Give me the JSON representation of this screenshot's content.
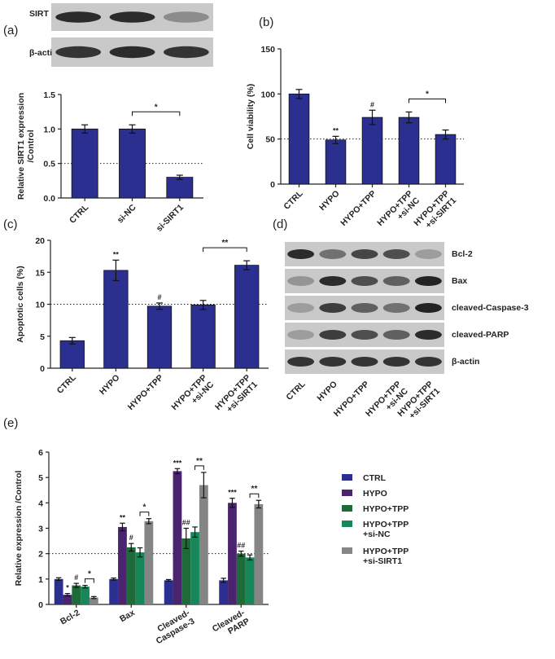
{
  "panel_labels": [
    "(a)",
    "(b)",
    "(c)",
    "(d)",
    "(e)"
  ],
  "blots": {
    "a": {
      "labels": [
        "SIRT",
        "β-acti"
      ]
    },
    "d": {
      "labels": [
        "Bcl-2",
        "Bax",
        "cleaved-Caspase-3",
        "cleaved-PARP",
        "β-actin"
      ],
      "categories": [
        "CTRL",
        "HYPO",
        "HYPO+TPP",
        "HYPO+TPP\n+si-NC",
        "HYPO+TPP\n+si-SIRT1"
      ]
    }
  },
  "chart_data": [
    {
      "type": "bar",
      "ylabel": "Relative SIRT1 expression\n/Control",
      "categories": [
        "CTRL",
        "si-NC",
        "si-SIRT1"
      ],
      "values": [
        1.0,
        1.0,
        0.3
      ],
      "errors": [
        0.06,
        0.06,
        0.03
      ],
      "color": "#2b2f8f",
      "ylim": [
        0,
        1.5
      ],
      "yticks": [
        {
          "value": 0,
          "label": "0.0"
        },
        {
          "value": 0.5,
          "label": "0.5"
        },
        {
          "value": 1.0,
          "label": "1.0"
        },
        {
          "value": 1.5,
          "label": "1.5"
        }
      ],
      "refline": 0.5,
      "brackets": [
        {
          "text": "*",
          "from": 1,
          "to": 2
        }
      ]
    },
    {
      "type": "bar",
      "ylabel": "Cell viability (%)",
      "categories": [
        "CTRL",
        "HYPO",
        "HYPO+TPP",
        "HYPO+TPP\n+si-NC",
        "HYPO+TPP\n+si-SIRT1"
      ],
      "values": [
        100,
        49,
        74,
        74,
        55
      ],
      "errors": [
        5,
        4,
        8,
        6,
        5
      ],
      "color": "#2b2f8f",
      "ylim": [
        0,
        150
      ],
      "yticks": [
        0,
        50,
        100,
        150
      ],
      "refline": 50,
      "annotations": [
        {
          "text": "**",
          "category": 1
        },
        {
          "text": "#",
          "category": 2
        }
      ],
      "brackets": [
        {
          "text": "*",
          "from": 3,
          "to": 4
        }
      ]
    },
    {
      "type": "bar",
      "ylabel": "Apoptotic cells (%)",
      "categories": [
        "CTRL",
        "HYPO",
        "HYPO+TPP",
        "HYPO+TPP\n+si-NC",
        "HYPO+TPP\n+si-SIRT1"
      ],
      "values": [
        4.3,
        15.3,
        9.7,
        9.9,
        16.1
      ],
      "errors": [
        0.5,
        1.6,
        0.5,
        0.7,
        0.7
      ],
      "color": "#2b2f8f",
      "ylim": [
        0,
        20
      ],
      "yticks": [
        0,
        5,
        10,
        15,
        20
      ],
      "refline": 10,
      "annotations": [
        {
          "text": "**",
          "category": 1
        },
        {
          "text": "#",
          "category": 2
        }
      ],
      "brackets": [
        {
          "text": "**",
          "from": 3,
          "to": 4
        }
      ]
    },
    {
      "type": "bar",
      "ylabel": "Relative expression /Control",
      "categories": [
        "Bcl-2",
        "Bax",
        "Cleaved-\nCaspase-3",
        "Cleaved-\nPARP"
      ],
      "series": [
        {
          "name": "CTRL",
          "color": "#2b2f8f",
          "values": [
            1.0,
            1.0,
            0.95,
            0.95
          ],
          "errors": [
            0.05,
            0.04,
            0.03,
            0.08
          ]
        },
        {
          "name": "HYPO",
          "color": "#4b2470",
          "values": [
            0.38,
            3.05,
            5.25,
            4.0
          ],
          "errors": [
            0.05,
            0.15,
            0.1,
            0.18
          ]
        },
        {
          "name": "HYPO+TPP",
          "color": "#1d6b37",
          "values": [
            0.75,
            2.25,
            2.6,
            2.0
          ],
          "errors": [
            0.08,
            0.15,
            0.4,
            0.1
          ]
        },
        {
          "name": "HYPO+TPP\n+si-NC",
          "color": "#17875a",
          "values": [
            0.7,
            2.05,
            2.85,
            1.85
          ],
          "errors": [
            0.05,
            0.18,
            0.2,
            0.1
          ]
        },
        {
          "name": "HYPO+TPP\n+si-SIRT1",
          "color": "#858585",
          "values": [
            0.27,
            3.28,
            4.7,
            3.95
          ],
          "errors": [
            0.04,
            0.1,
            0.5,
            0.15
          ]
        }
      ],
      "ylim": [
        0,
        6
      ],
      "yticks": [
        0,
        1,
        2,
        3,
        4,
        5,
        6
      ],
      "refline": 2,
      "annotations": [
        {
          "text": "*",
          "category": 0,
          "series": 1
        },
        {
          "text": "#",
          "category": 0,
          "series": 2
        },
        {
          "text": "**",
          "category": 1,
          "series": 1
        },
        {
          "text": "#",
          "category": 1,
          "series": 2
        },
        {
          "text": "***",
          "category": 2,
          "series": 1
        },
        {
          "text": "##",
          "category": 2,
          "series": 2
        },
        {
          "text": "***",
          "category": 3,
          "series": 1
        },
        {
          "text": "##",
          "category": 3,
          "series": 2
        }
      ],
      "brackets": [
        {
          "text": "*",
          "category": 0,
          "from": 3,
          "to": 4
        },
        {
          "text": "*",
          "category": 1,
          "from": 3,
          "to": 4
        },
        {
          "text": "**",
          "category": 2,
          "from": 3,
          "to": 4
        },
        {
          "text": "**",
          "category": 3,
          "from": 3,
          "to": 4
        }
      ]
    }
  ]
}
